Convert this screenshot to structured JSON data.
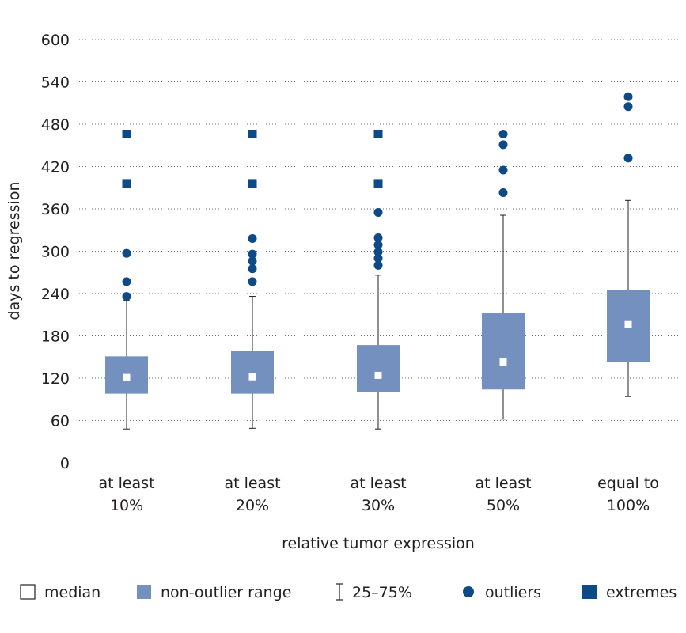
{
  "chart_data": {
    "type": "box",
    "xlabel": "relative tumor expression",
    "ylabel": "days to regression",
    "ylim": [
      0,
      600
    ],
    "yticks": [
      0,
      60,
      120,
      180,
      240,
      300,
      360,
      420,
      480,
      540,
      600
    ],
    "grid": "horizontal dotted",
    "colors": {
      "box": "#7390bf",
      "median": "#ffffff",
      "marker": "#0d4a86",
      "whisker": "#231f20",
      "text": "#231f20"
    },
    "categories": [
      [
        "at least",
        "10%"
      ],
      [
        "at least",
        "20%"
      ],
      [
        "at least",
        "30%"
      ],
      [
        "at least",
        "50%"
      ],
      [
        "equal to",
        "100%"
      ]
    ],
    "boxes": [
      {
        "median": 121,
        "q1": 98,
        "q3": 151,
        "whisker_low": 48,
        "whisker_high": 230,
        "outliers": [
          236,
          257,
          297
        ],
        "extremes": [
          396,
          466
        ]
      },
      {
        "median": 122,
        "q1": 98,
        "q3": 159,
        "whisker_low": 49,
        "whisker_high": 236,
        "outliers": [
          257,
          275,
          286,
          296,
          318
        ],
        "extremes": [
          396,
          466
        ]
      },
      {
        "median": 124,
        "q1": 100,
        "q3": 167,
        "whisker_low": 48,
        "whisker_high": 266,
        "outliers": [
          280,
          290,
          299,
          309,
          319,
          355
        ],
        "extremes": [
          396,
          466
        ]
      },
      {
        "median": 143,
        "q1": 104,
        "q3": 212,
        "whisker_low": 62,
        "whisker_high": 351,
        "outliers": [
          383,
          415,
          451,
          466
        ],
        "extremes": []
      },
      {
        "median": 196,
        "q1": 143,
        "q3": 245,
        "whisker_low": 94,
        "whisker_high": 372,
        "outliers": [
          432,
          505,
          519
        ],
        "extremes": []
      }
    ],
    "legend": {
      "position": "bottom",
      "items": [
        {
          "icon": "median-swatch",
          "label": "median"
        },
        {
          "icon": "range-swatch",
          "label": "non-outlier range"
        },
        {
          "icon": "whisker-icon",
          "label": "25–75%"
        },
        {
          "icon": "circle-marker",
          "label": "outliers"
        },
        {
          "icon": "square-marker",
          "label": "extremes"
        }
      ]
    }
  }
}
